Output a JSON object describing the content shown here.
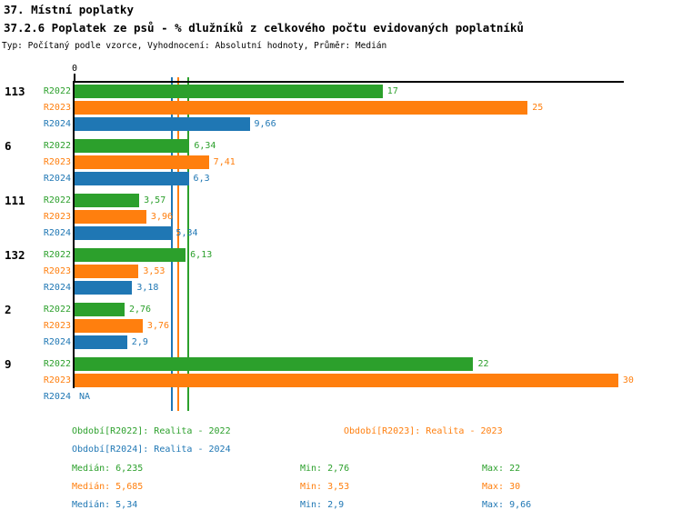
{
  "header": {
    "title1": "37. Místní poplatky",
    "title2": "37.2.6 Poplatek ze psů - % dlužníků z celkového počtu evidovaných poplatníků",
    "subtitle": "Typ: Počítaný podle vzorce, Vyhodnocení: Absolutní hodnoty, Průměr: Medián"
  },
  "chart_data": {
    "type": "bar",
    "orientation": "horizontal",
    "title": "37.2.6 Poplatek ze psů - % dlužníků z celkového počtu evidovaných poplatníků",
    "xlabel": "",
    "ylabel": "",
    "axis": {
      "origin_label": "0",
      "xmin": 0,
      "xmax": 30.3,
      "gridlines": false
    },
    "series_colors": {
      "R2022": "#2CA02C",
      "R2023": "#FF7F0E",
      "R2024": "#1F77B4"
    },
    "groups": [
      {
        "label": "113",
        "bars": [
          {
            "series": "R2022",
            "value": 17,
            "display": "17"
          },
          {
            "series": "R2023",
            "value": 25,
            "display": "25"
          },
          {
            "series": "R2024",
            "value": 9.66,
            "display": "9,66"
          }
        ]
      },
      {
        "label": "6",
        "bars": [
          {
            "series": "R2022",
            "value": 6.34,
            "display": "6,34"
          },
          {
            "series": "R2023",
            "value": 7.41,
            "display": "7,41"
          },
          {
            "series": "R2024",
            "value": 6.3,
            "display": "6,3"
          }
        ]
      },
      {
        "label": "111",
        "bars": [
          {
            "series": "R2022",
            "value": 3.57,
            "display": "3,57"
          },
          {
            "series": "R2023",
            "value": 3.96,
            "display": "3,96"
          },
          {
            "series": "R2024",
            "value": 5.34,
            "display": "5,34"
          }
        ]
      },
      {
        "label": "132",
        "bars": [
          {
            "series": "R2022",
            "value": 6.13,
            "display": "6,13"
          },
          {
            "series": "R2023",
            "value": 3.53,
            "display": "3,53"
          },
          {
            "series": "R2024",
            "value": 3.18,
            "display": "3,18"
          }
        ]
      },
      {
        "label": "2",
        "bars": [
          {
            "series": "R2022",
            "value": 2.76,
            "display": "2,76"
          },
          {
            "series": "R2023",
            "value": 3.76,
            "display": "3,76"
          },
          {
            "series": "R2024",
            "value": 2.9,
            "display": "2,9"
          }
        ]
      },
      {
        "label": "9",
        "bars": [
          {
            "series": "R2022",
            "value": 22,
            "display": "22"
          },
          {
            "series": "R2023",
            "value": 30,
            "display": "30"
          },
          {
            "series": "R2024",
            "value": null,
            "display": "NA"
          }
        ]
      }
    ],
    "medians": [
      {
        "series": "R2024",
        "value": 5.34
      },
      {
        "series": "R2023",
        "value": 5.685
      },
      {
        "series": "R2022",
        "value": 6.235
      }
    ]
  },
  "legend": {
    "items": [
      {
        "series": "R2022",
        "label": "Období[R2022]: Realita - 2022"
      },
      {
        "series": "R2023",
        "label": "Období[R2023]: Realita - 2023"
      },
      {
        "series": "R2024",
        "label": "Období[R2024]: Realita - 2024"
      }
    ]
  },
  "stats": [
    {
      "series": "R2022",
      "median": "Medián: 6,235",
      "min": "Min: 2,76",
      "max": "Max: 22"
    },
    {
      "series": "R2023",
      "median": "Medián: 5,685",
      "min": "Min: 3,53",
      "max": "Max: 30"
    },
    {
      "series": "R2024",
      "median": "Medián: 5,34",
      "min": "Min: 2,9",
      "max": "Max: 9,66"
    }
  ]
}
